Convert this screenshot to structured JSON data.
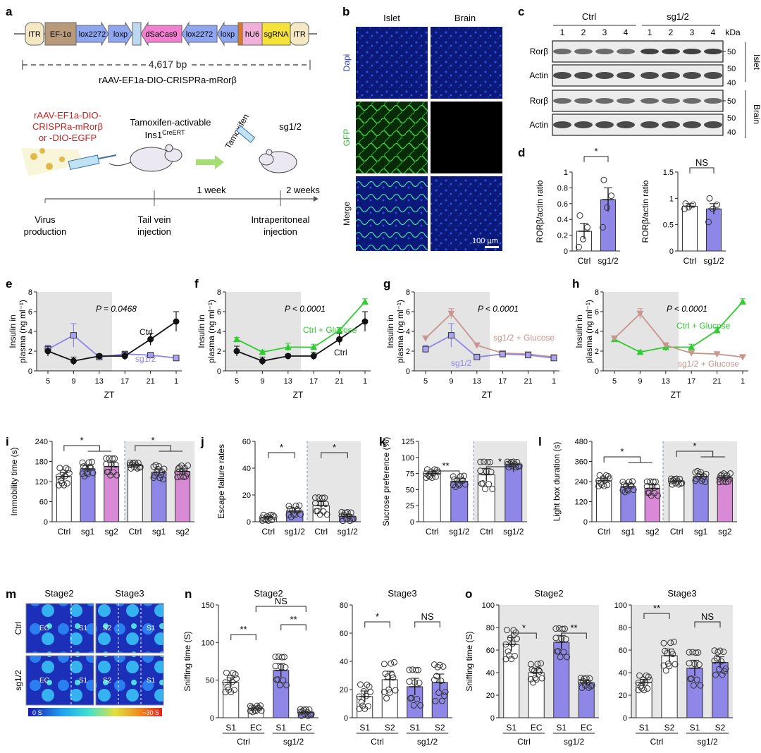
{
  "panels": {
    "a": {
      "letter": "a",
      "construct": [
        "ITR",
        "EF-1α",
        "lox2272",
        "loxp",
        "",
        "dSaCas9",
        "lox2272",
        "loxp",
        "",
        "hU6",
        "sgRNA",
        "ITR"
      ],
      "length": "4,617 bp",
      "vector_name": "rAAV-EF1a-DIO-CRISPRa-mRorβ",
      "virus_label": [
        "rAAV-EF1a-DIO-",
        "CRISPRa-mRorβ",
        "or -DIO-EGFP"
      ],
      "mouse_label": [
        "Tamoxifen-activable",
        "Ins1",
        "CreERT"
      ],
      "tamoxifen": "Tamoxifen",
      "sg_label": "sg1/2",
      "timeline": [
        "1 week",
        "2 weeks"
      ],
      "steps": [
        [
          "Virus",
          "production"
        ],
        [
          "Tail vein",
          "injection"
        ],
        [
          "Intraperitoneal",
          "injection"
        ]
      ]
    },
    "b": {
      "letter": "b",
      "cols": [
        "Islet",
        "Brain"
      ],
      "rows": [
        "Dapi",
        "GFP",
        "Merge"
      ],
      "scale": "100 µm"
    },
    "c": {
      "letter": "c",
      "groups": [
        "Ctrl",
        "sg1/2"
      ],
      "lanes": [
        "1",
        "2",
        "3",
        "4",
        "1",
        "2",
        "3",
        "4"
      ],
      "kda": "kDa",
      "rows": [
        {
          "label": "Rorβ",
          "marks": [
            "50"
          ]
        },
        {
          "label": "Actin",
          "marks": [
            "50",
            "40"
          ]
        },
        {
          "label": "Rorβ",
          "marks": [
            "50"
          ]
        },
        {
          "label": "Actin",
          "marks": [
            "50",
            "40"
          ]
        }
      ],
      "tissue": [
        "Islet",
        "Brain"
      ]
    },
    "d": {
      "letter": "d"
    },
    "e": {
      "letter": "e",
      "p": "P = 0.0468",
      "l1": "Ctrl",
      "l2": "sg1/2"
    },
    "f": {
      "letter": "f",
      "p": "P < 0.0001",
      "l1": "Ctrl + Glucose",
      "l2": "Ctrl"
    },
    "g": {
      "letter": "g",
      "p": "P < 0.0001",
      "l1": "sg1/2 + Glucose",
      "l2": "sg1/2"
    },
    "h": {
      "letter": "h",
      "p": "P < 0.0001",
      "l1": "Ctrl + Glucose",
      "l2": "sg1/2 + Glucose"
    },
    "i": {
      "letter": "i"
    },
    "j": {
      "letter": "j"
    },
    "k": {
      "letter": "k"
    },
    "l": {
      "letter": "l"
    },
    "m": {
      "letter": "m",
      "cols": [
        "Stage2",
        "Stage3"
      ],
      "rows": [
        "Ctrl",
        "sg1/2"
      ],
      "labels": [
        "EC",
        "S1",
        "S2",
        "S1",
        "EC",
        "S1",
        "S2",
        "S1"
      ],
      "scale_min": "0 S",
      "scale_max": "~30 S"
    },
    "n": {
      "letter": "n"
    },
    "o": {
      "letter": "o"
    }
  },
  "colors": {
    "ctrl": "#ffffff",
    "sg": "#8e87e8",
    "sg2": "#d98ad6",
    "green": "#2ecc2e",
    "pink": "#c8968e",
    "shade": "#e4e4e4",
    "blue": "#1a1ab0"
  },
  "chart_data": [
    {
      "id": "d1",
      "type": "bar",
      "categories": [
        "Ctrl",
        "sg1/2"
      ],
      "values": [
        0.25,
        0.65
      ],
      "errors": [
        0.1,
        0.15
      ],
      "points": [
        [
          0.05,
          0.15,
          0.3,
          0.45
        ],
        [
          0.3,
          0.55,
          0.7,
          0.9
        ]
      ],
      "ylabel": "RORβ/actin ratio",
      "ylim": [
        0,
        1.0
      ],
      "yticks": [
        0,
        0.2,
        0.4,
        0.6,
        0.8,
        1.0
      ],
      "sig": "*"
    },
    {
      "id": "d2",
      "type": "bar",
      "categories": [
        "Ctrl",
        "sg1/2"
      ],
      "values": [
        0.85,
        0.8
      ],
      "errors": [
        0.05,
        0.1
      ],
      "points": [
        [
          0.8,
          0.83,
          0.88,
          0.9
        ],
        [
          0.55,
          0.8,
          0.88,
          1.0
        ]
      ],
      "ylabel": "RORβ/actin ratio",
      "ylim": [
        0,
        1.5
      ],
      "yticks": [
        0,
        0.5,
        1.0,
        1.5
      ],
      "sig": "NS"
    },
    {
      "id": "e",
      "type": "line",
      "x": [
        "5",
        "9",
        "13",
        "17",
        "21",
        "1"
      ],
      "xlabel": "ZT",
      "ylabel": "Insulin in plasma (ng ml⁻¹)",
      "ylim": [
        0,
        8
      ],
      "yticks": [
        0,
        2,
        4,
        6,
        8
      ],
      "series": [
        {
          "name": "sg1/2",
          "values": [
            2.2,
            3.6,
            1.4,
            1.7,
            1.6,
            1.3
          ],
          "errors": [
            0.4,
            1.2,
            0.2,
            0.2,
            0.2,
            0.15
          ],
          "marker": "square",
          "color": "#8e87e8"
        },
        {
          "name": "Ctrl",
          "values": [
            2.0,
            1.0,
            1.5,
            1.5,
            3.2,
            5.0
          ],
          "errors": [
            0.5,
            0.4,
            0.2,
            0.4,
            0.6,
            1.0
          ],
          "marker": "circle",
          "color": "#111111"
        }
      ]
    },
    {
      "id": "f",
      "type": "line",
      "x": [
        "5",
        "9",
        "13",
        "17",
        "21",
        "1"
      ],
      "xlabel": "ZT",
      "ylabel": "Insulin in plasma (ng ml⁻¹)",
      "ylim": [
        0,
        8
      ],
      "yticks": [
        0,
        2,
        4,
        6,
        8
      ],
      "series": [
        {
          "name": "Ctrl + Glucose",
          "values": [
            3.2,
            1.9,
            2.4,
            2.4,
            4.1,
            7.0
          ],
          "errors": [
            0.2,
            0.2,
            0.4,
            0.3,
            0.3,
            0.3
          ],
          "marker": "triangle",
          "color": "#2ecc2e"
        },
        {
          "name": "Ctrl",
          "values": [
            2.0,
            1.0,
            1.5,
            1.5,
            3.2,
            5.0
          ],
          "errors": [
            0.5,
            0.4,
            0.2,
            0.4,
            0.6,
            1.0
          ],
          "marker": "circle",
          "color": "#111111"
        }
      ]
    },
    {
      "id": "g",
      "type": "line",
      "x": [
        "5",
        "9",
        "13",
        "17",
        "21",
        "1"
      ],
      "xlabel": "ZT",
      "ylabel": "Insulin in plasma (ng ml⁻¹)",
      "ylim": [
        0,
        8
      ],
      "yticks": [
        0,
        2,
        4,
        6,
        8
      ],
      "series": [
        {
          "name": "sg1/2 + Glucose",
          "values": [
            3.3,
            5.8,
            2.6,
            1.8,
            1.7,
            1.4
          ],
          "errors": [
            0.2,
            0.5,
            0.2,
            0.2,
            0.2,
            0.1
          ],
          "marker": "triangle-down",
          "color": "#c8968e"
        },
        {
          "name": "sg1/2",
          "values": [
            2.2,
            3.6,
            1.4,
            1.7,
            1.6,
            1.3
          ],
          "errors": [
            0.4,
            1.2,
            0.2,
            0.2,
            0.2,
            0.15
          ],
          "marker": "square",
          "color": "#8e87e8"
        }
      ]
    },
    {
      "id": "h",
      "type": "line",
      "x": [
        "5",
        "9",
        "13",
        "17",
        "21",
        "1"
      ],
      "xlabel": "ZT",
      "ylabel": "Insulin in plasma (ng ml⁻¹)",
      "ylim": [
        0,
        8
      ],
      "yticks": [
        0,
        2,
        4,
        6,
        8
      ],
      "series": [
        {
          "name": "Ctrl + Glucose",
          "values": [
            3.2,
            1.9,
            2.4,
            2.4,
            4.1,
            7.0
          ],
          "errors": [
            0.2,
            0.2,
            0.4,
            0.3,
            0.3,
            0.3
          ],
          "marker": "triangle",
          "color": "#2ecc2e"
        },
        {
          "name": "sg1/2 + Glucose",
          "values": [
            3.3,
            5.8,
            2.6,
            1.8,
            1.7,
            1.4
          ],
          "errors": [
            0.2,
            0.5,
            0.2,
            0.2,
            0.2,
            0.1
          ],
          "marker": "triangle-down",
          "color": "#c8968e"
        }
      ]
    },
    {
      "id": "i",
      "type": "bar",
      "categories": [
        "Ctrl",
        "sg1",
        "sg2",
        "Ctrl",
        "sg1",
        "sg2"
      ],
      "values": [
        135,
        158,
        165,
        168,
        148,
        150
      ],
      "errors": [
        12,
        10,
        12,
        4,
        10,
        8
      ],
      "colors": [
        "#ffffff",
        "#8e87e8",
        "#d98ad6",
        "#ffffff",
        "#8e87e8",
        "#d98ad6"
      ],
      "ylabel": "Immobility time (s)",
      "ylim": [
        0,
        240
      ],
      "yticks": [
        0,
        60,
        120,
        180,
        240
      ],
      "sig": [
        "*",
        "*"
      ]
    },
    {
      "id": "j",
      "type": "bar",
      "categories": [
        "Ctrl",
        "sg1/2",
        "Ctrl",
        "sg1/2"
      ],
      "values": [
        3,
        8,
        12,
        4
      ],
      "errors": [
        1,
        2,
        3,
        1.5
      ],
      "colors": [
        "#ffffff",
        "#8e87e8",
        "#ffffff",
        "#8e87e8"
      ],
      "ylabel": "Escape failure rates",
      "ylim": [
        0,
        60
      ],
      "yticks": [
        0,
        20,
        40,
        60
      ],
      "sig": [
        "*",
        "*"
      ]
    },
    {
      "id": "k",
      "type": "bar",
      "categories": [
        "Ctrl",
        "sg1/2",
        "Ctrl",
        "sg1/2"
      ],
      "values": [
        75,
        63,
        73,
        89
      ],
      "errors": [
        3,
        4,
        10,
        2
      ],
      "colors": [
        "#ffffff",
        "#8e87e8",
        "#ffffff",
        "#8e87e8"
      ],
      "ylabel": "Sucrose preference (%)",
      "ylim": [
        0,
        125
      ],
      "yticks": [
        0,
        25,
        50,
        75,
        100,
        125
      ],
      "sig": [
        "**",
        "*"
      ]
    },
    {
      "id": "l",
      "type": "bar",
      "categories": [
        "Ctrl",
        "sg1",
        "sg2",
        "Ctrl",
        "sg1",
        "sg2"
      ],
      "values": [
        245,
        210,
        200,
        240,
        270,
        262
      ],
      "errors": [
        15,
        15,
        20,
        8,
        15,
        12
      ],
      "colors": [
        "#ffffff",
        "#8e87e8",
        "#d98ad6",
        "#ffffff",
        "#8e87e8",
        "#d98ad6"
      ],
      "ylabel": "Light box duration (s)",
      "ylim": [
        0,
        480
      ],
      "yticks": [
        0,
        120,
        240,
        360,
        480
      ],
      "sig": [
        "*",
        "*"
      ]
    },
    {
      "id": "n1",
      "type": "bar",
      "title": "Stage2",
      "categories": [
        "S1",
        "EC",
        "S1",
        "EC"
      ],
      "groups": [
        "Ctrl",
        "sg1/2"
      ],
      "values": [
        47,
        12,
        63,
        7
      ],
      "errors": [
        6,
        2,
        9,
        2
      ],
      "colors": [
        "#ffffff",
        "#ffffff",
        "#8e87e8",
        "#8e87e8"
      ],
      "ylabel": "Sniffing time (S)",
      "ylim": [
        0,
        150
      ],
      "yticks": [
        0,
        50,
        100,
        150
      ],
      "sig": [
        "**",
        "**",
        "NS"
      ]
    },
    {
      "id": "n2",
      "type": "bar",
      "title": "Stage3",
      "categories": [
        "S1",
        "S2",
        "S1",
        "S2"
      ],
      "groups": [
        "Ctrl",
        "sg1/2"
      ],
      "values": [
        15,
        27,
        22,
        25
      ],
      "errors": [
        4,
        6,
        6,
        6
      ],
      "colors": [
        "#ffffff",
        "#ffffff",
        "#8e87e8",
        "#8e87e8"
      ],
      "ylabel": "",
      "ylim": [
        0,
        80
      ],
      "yticks": [
        0,
        20,
        40,
        60,
        80
      ],
      "sig": [
        "*",
        "NS"
      ]
    },
    {
      "id": "o1",
      "type": "bar",
      "title": "Stage2",
      "categories": [
        "S1",
        "EC",
        "S1",
        "EC"
      ],
      "groups": [
        "Ctrl",
        "sg1/2"
      ],
      "values": [
        65,
        40,
        67,
        31
      ],
      "errors": [
        6,
        4,
        6,
        2
      ],
      "colors": [
        "#ffffff",
        "#ffffff",
        "#8e87e8",
        "#8e87e8"
      ],
      "ylabel": "Sniffing time (S)",
      "ylim": [
        0,
        100
      ],
      "yticks": [
        0,
        20,
        40,
        60,
        80,
        100
      ],
      "sig": [
        "*",
        "**"
      ]
    },
    {
      "id": "o2",
      "type": "bar",
      "title": "Stage3",
      "categories": [
        "S1",
        "S2",
        "S1",
        "S2"
      ],
      "groups": [
        "Ctrl",
        "sg1/2"
      ],
      "values": [
        31,
        55,
        44,
        49
      ],
      "errors": [
        3,
        6,
        7,
        5
      ],
      "colors": [
        "#ffffff",
        "#ffffff",
        "#8e87e8",
        "#8e87e8"
      ],
      "ylabel": "",
      "ylim": [
        0,
        100
      ],
      "yticks": [
        0,
        20,
        40,
        60,
        80,
        100
      ],
      "sig": [
        "**",
        "NS"
      ]
    }
  ]
}
